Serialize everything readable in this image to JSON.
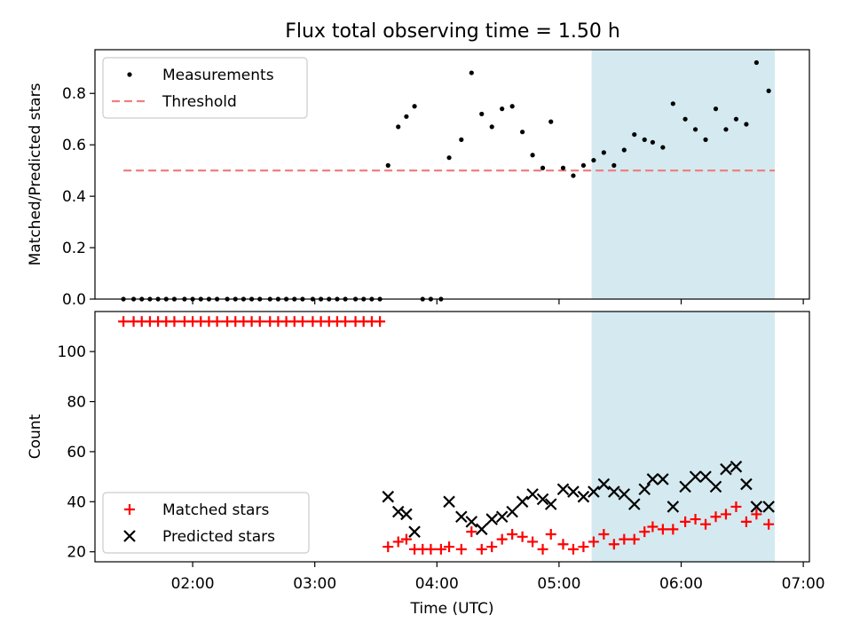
{
  "title": "Flux total observing time = 1.50 h",
  "colors": {
    "shade": "#d4eaf0",
    "measurements": "#000000",
    "threshold": "#f08080",
    "matched": "#ff0000",
    "predicted": "#000000"
  },
  "chart_data": [
    {
      "type": "scatter",
      "ylabel": "Matched/Predicted stars",
      "ylim": [
        0,
        0.97
      ],
      "yticks": [
        0.0,
        0.2,
        0.4,
        0.6,
        0.8
      ],
      "ytick_labels": [
        "0.0",
        "0.2",
        "0.4",
        "0.6",
        "0.8"
      ],
      "xlim": [
        "01:12",
        "07:03"
      ],
      "x_tick_labels_shown": false,
      "shaded_region": [
        "05:16",
        "06:46"
      ],
      "legend": {
        "placement": "upper left",
        "entries": [
          "Measurements",
          "Threshold"
        ]
      },
      "threshold": {
        "value": 0.5,
        "x_start": "01:26",
        "x_end": "06:46",
        "style": "dashed"
      },
      "series": [
        {
          "name": "Measurements",
          "marker": "dot",
          "points": [
            [
              "01:26",
              0
            ],
            [
              "01:31",
              0
            ],
            [
              "01:35",
              0
            ],
            [
              "01:39",
              0
            ],
            [
              "01:43",
              0
            ],
            [
              "01:47",
              0
            ],
            [
              "01:51",
              0
            ],
            [
              "01:56",
              0
            ],
            [
              "02:00",
              0
            ],
            [
              "02:04",
              0
            ],
            [
              "02:08",
              0
            ],
            [
              "02:12",
              0
            ],
            [
              "02:17",
              0
            ],
            [
              "02:21",
              0
            ],
            [
              "02:25",
              0
            ],
            [
              "02:29",
              0
            ],
            [
              "02:33",
              0
            ],
            [
              "02:38",
              0
            ],
            [
              "02:42",
              0
            ],
            [
              "02:46",
              0
            ],
            [
              "02:50",
              0
            ],
            [
              "02:54",
              0
            ],
            [
              "02:59",
              0
            ],
            [
              "03:03",
              0
            ],
            [
              "03:07",
              0
            ],
            [
              "03:11",
              0
            ],
            [
              "03:15",
              0
            ],
            [
              "03:20",
              0
            ],
            [
              "03:24",
              0
            ],
            [
              "03:28",
              0
            ],
            [
              "03:32",
              0
            ],
            [
              "03:36",
              0.52
            ],
            [
              "03:41",
              0.67
            ],
            [
              "03:45",
              0.71
            ],
            [
              "03:49",
              0.75
            ],
            [
              "03:53",
              0
            ],
            [
              "03:57",
              0
            ],
            [
              "04:02",
              0
            ],
            [
              "04:06",
              0.55
            ],
            [
              "04:12",
              0.62
            ],
            [
              "04:17",
              0.88
            ],
            [
              "04:22",
              0.72
            ],
            [
              "04:27",
              0.67
            ],
            [
              "04:32",
              0.74
            ],
            [
              "04:37",
              0.75
            ],
            [
              "04:42",
              0.65
            ],
            [
              "04:47",
              0.56
            ],
            [
              "04:52",
              0.51
            ],
            [
              "04:56",
              0.69
            ],
            [
              "05:02",
              0.51
            ],
            [
              "05:07",
              0.48
            ],
            [
              "05:12",
              0.52
            ],
            [
              "05:17",
              0.54
            ],
            [
              "05:22",
              0.57
            ],
            [
              "05:27",
              0.52
            ],
            [
              "05:32",
              0.58
            ],
            [
              "05:37",
              0.64
            ],
            [
              "05:42",
              0.62
            ],
            [
              "05:46",
              0.61
            ],
            [
              "05:51",
              0.59
            ],
            [
              "05:56",
              0.76
            ],
            [
              "06:02",
              0.7
            ],
            [
              "06:07",
              0.66
            ],
            [
              "06:12",
              0.62
            ],
            [
              "06:17",
              0.74
            ],
            [
              "06:22",
              0.66
            ],
            [
              "06:27",
              0.7
            ],
            [
              "06:32",
              0.68
            ],
            [
              "06:37",
              0.92
            ],
            [
              "06:43",
              0.81
            ]
          ]
        }
      ]
    },
    {
      "type": "scatter",
      "xlabel": "Time (UTC)",
      "ylabel": "Count",
      "ylim": [
        16,
        116
      ],
      "yticks": [
        20,
        40,
        60,
        80,
        100
      ],
      "ytick_labels": [
        "20",
        "40",
        "60",
        "80",
        "100"
      ],
      "xlim": [
        "01:12",
        "07:03"
      ],
      "xticks": [
        "02:00",
        "03:00",
        "04:00",
        "05:00",
        "06:00",
        "07:00"
      ],
      "xtick_labels": [
        "02:00",
        "03:00",
        "04:00",
        "05:00",
        "06:00",
        "07:00"
      ],
      "shaded_region": [
        "05:16",
        "06:46"
      ],
      "legend": {
        "placement": "lower left",
        "entries": [
          "Matched stars",
          "Predicted stars"
        ]
      },
      "series": [
        {
          "name": "Matched stars",
          "marker": "plus",
          "points": [
            [
              "01:26",
              112
            ],
            [
              "01:31",
              112
            ],
            [
              "01:35",
              112
            ],
            [
              "01:39",
              112
            ],
            [
              "01:43",
              112
            ],
            [
              "01:47",
              112
            ],
            [
              "01:51",
              112
            ],
            [
              "01:56",
              112
            ],
            [
              "02:00",
              112
            ],
            [
              "02:04",
              112
            ],
            [
              "02:08",
              112
            ],
            [
              "02:12",
              112
            ],
            [
              "02:17",
              112
            ],
            [
              "02:21",
              112
            ],
            [
              "02:25",
              112
            ],
            [
              "02:29",
              112
            ],
            [
              "02:33",
              112
            ],
            [
              "02:38",
              112
            ],
            [
              "02:42",
              112
            ],
            [
              "02:46",
              112
            ],
            [
              "02:50",
              112
            ],
            [
              "02:54",
              112
            ],
            [
              "02:59",
              112
            ],
            [
              "03:03",
              112
            ],
            [
              "03:07",
              112
            ],
            [
              "03:11",
              112
            ],
            [
              "03:15",
              112
            ],
            [
              "03:20",
              112
            ],
            [
              "03:24",
              112
            ],
            [
              "03:28",
              112
            ],
            [
              "03:32",
              112
            ],
            [
              "03:36",
              22
            ],
            [
              "03:41",
              24
            ],
            [
              "03:45",
              25
            ],
            [
              "03:49",
              21
            ],
            [
              "03:53",
              21
            ],
            [
              "03:57",
              21
            ],
            [
              "04:02",
              21
            ],
            [
              "04:06",
              22
            ],
            [
              "04:12",
              21
            ],
            [
              "04:17",
              28
            ],
            [
              "04:22",
              21
            ],
            [
              "04:27",
              22
            ],
            [
              "04:32",
              25
            ],
            [
              "04:37",
              27
            ],
            [
              "04:42",
              26
            ],
            [
              "04:47",
              24
            ],
            [
              "04:52",
              21
            ],
            [
              "04:56",
              27
            ],
            [
              "05:02",
              23
            ],
            [
              "05:07",
              21
            ],
            [
              "05:12",
              22
            ],
            [
              "05:17",
              24
            ],
            [
              "05:22",
              27
            ],
            [
              "05:27",
              23
            ],
            [
              "05:32",
              25
            ],
            [
              "05:37",
              25
            ],
            [
              "05:42",
              28
            ],
            [
              "05:46",
              30
            ],
            [
              "05:51",
              29
            ],
            [
              "05:56",
              29
            ],
            [
              "06:02",
              32
            ],
            [
              "06:07",
              33
            ],
            [
              "06:12",
              31
            ],
            [
              "06:17",
              34
            ],
            [
              "06:22",
              35
            ],
            [
              "06:27",
              38
            ],
            [
              "06:32",
              32
            ],
            [
              "06:37",
              35
            ],
            [
              "06:43",
              31
            ]
          ]
        },
        {
          "name": "Predicted stars",
          "marker": "x",
          "points": [
            [
              "03:36",
              42
            ],
            [
              "03:41",
              36
            ],
            [
              "03:45",
              35
            ],
            [
              "03:49",
              28
            ],
            [
              "04:06",
              40
            ],
            [
              "04:12",
              34
            ],
            [
              "04:17",
              32
            ],
            [
              "04:22",
              29
            ],
            [
              "04:27",
              33
            ],
            [
              "04:32",
              34
            ],
            [
              "04:37",
              36
            ],
            [
              "04:42",
              40
            ],
            [
              "04:47",
              43
            ],
            [
              "04:52",
              41
            ],
            [
              "04:56",
              39
            ],
            [
              "05:02",
              45
            ],
            [
              "05:07",
              44
            ],
            [
              "05:12",
              42
            ],
            [
              "05:17",
              44
            ],
            [
              "05:22",
              47
            ],
            [
              "05:27",
              44
            ],
            [
              "05:32",
              43
            ],
            [
              "05:37",
              39
            ],
            [
              "05:42",
              45
            ],
            [
              "05:46",
              49
            ],
            [
              "05:51",
              49
            ],
            [
              "05:56",
              38
            ],
            [
              "06:02",
              46
            ],
            [
              "06:07",
              50
            ],
            [
              "06:12",
              50
            ],
            [
              "06:17",
              46
            ],
            [
              "06:22",
              53
            ],
            [
              "06:27",
              54
            ],
            [
              "06:32",
              47
            ],
            [
              "06:37",
              38
            ],
            [
              "06:43",
              38
            ]
          ]
        }
      ]
    }
  ]
}
